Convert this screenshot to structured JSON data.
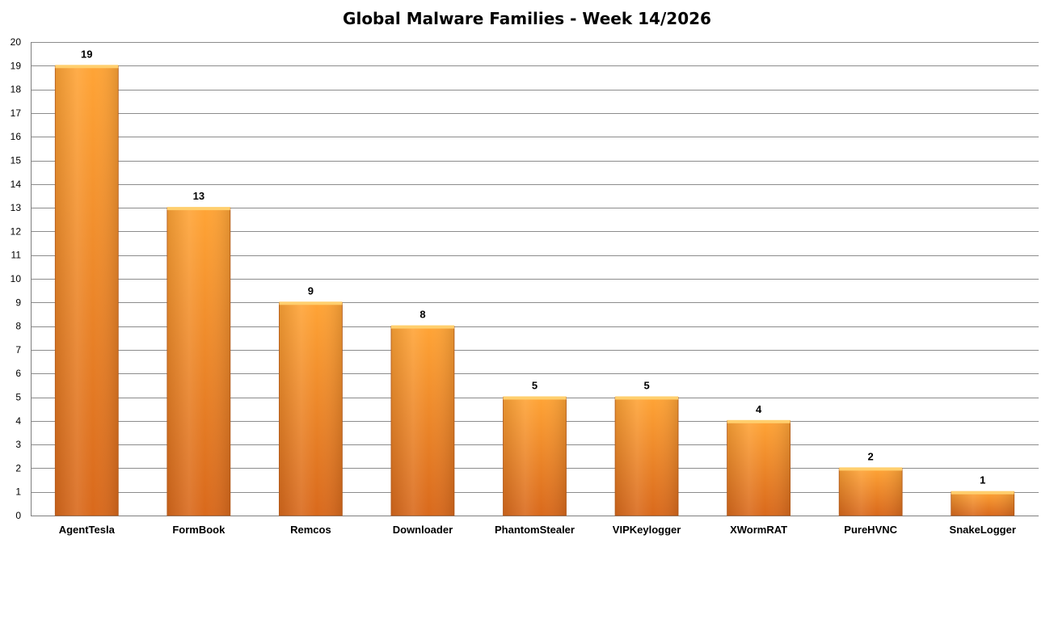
{
  "chart_data": {
    "type": "bar",
    "title": "Global Malware Families - Week 14/2026",
    "xlabel": "",
    "ylabel": "",
    "categories": [
      "AgentTesla",
      "FormBook",
      "Remcos",
      "Downloader",
      "PhantomStealer",
      "VIPKeylogger",
      "XWormRAT",
      "PureHVNC",
      "SnakeLogger"
    ],
    "values": [
      19,
      13,
      9,
      8,
      5,
      5,
      4,
      2,
      1
    ],
    "ylim": [
      0,
      20
    ],
    "yticks": [
      "0",
      "1",
      "2",
      "3",
      "4",
      "5",
      "6",
      "7",
      "8",
      "9",
      "10",
      "11",
      "12",
      "13",
      "14",
      "15",
      "16",
      "17",
      "18",
      "19",
      "20"
    ],
    "grid": true,
    "legend": "none",
    "data_labels": true,
    "colors": {
      "bar_light": "#ffa436",
      "bar_dark": "#d9691c",
      "bar_top": "#ffcf6e",
      "bar_edge": "#b85a18",
      "grid": "#8c8c8c",
      "axis": "#7f7f7f"
    }
  }
}
